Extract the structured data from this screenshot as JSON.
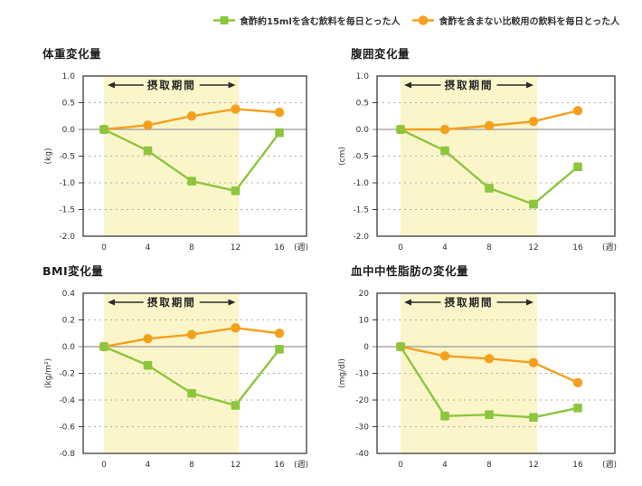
{
  "legend": {
    "items": [
      {
        "key": "vinegar",
        "label": "食酢約15mlを含む飲料を毎日とった人",
        "marker": "square",
        "color": "#8CC63E"
      },
      {
        "key": "control",
        "label": "食酢を含まない比較用の飲料を毎日とった人",
        "marker": "circle",
        "color": "#F5A01D"
      }
    ]
  },
  "intake_period_label": "摂取期間",
  "x_unit_label": "(週)",
  "colors": {
    "band": "#FBF5CA",
    "grid": "#ADADAD",
    "zero_line": "#999999",
    "frame": "#3C3C3C",
    "text": "#333333"
  },
  "chart_data": [
    {
      "type": "line",
      "title": "体重変化量",
      "ylabel": "(kg)",
      "xlabel": "(週)",
      "x": [
        0,
        4,
        8,
        12,
        16
      ],
      "ylim": [
        -2.0,
        1.0
      ],
      "ytick_labels": [
        "1.0",
        "0.5",
        "0.0",
        "-0.5",
        "-1.0",
        "-1.5",
        "-2.0"
      ],
      "grid": true,
      "intake_band_x": [
        0,
        12
      ],
      "series": [
        {
          "key": "vinegar",
          "name": "食酢約15mlを含む飲料を毎日とった人",
          "marker": "square",
          "color": "#8CC63E",
          "values": [
            0,
            -0.4,
            -0.97,
            -1.15,
            -0.06
          ]
        },
        {
          "key": "control",
          "name": "食酢を含まない比較用の飲料を毎日とった人",
          "marker": "circle",
          "color": "#F5A01D",
          "values": [
            0,
            0.08,
            0.25,
            0.38,
            0.32
          ]
        }
      ]
    },
    {
      "type": "line",
      "title": "腹囲変化量",
      "ylabel": "(cm)",
      "xlabel": "(週)",
      "x": [
        0,
        4,
        8,
        12,
        16
      ],
      "ylim": [
        -2.0,
        1.0
      ],
      "ytick_labels": [
        "1.0",
        "0.5",
        "0.0",
        "-0.5",
        "-1.0",
        "-1.5",
        "-2.0"
      ],
      "grid": true,
      "intake_band_x": [
        0,
        12
      ],
      "series": [
        {
          "key": "vinegar",
          "name": "食酢約15mlを含む飲料を毎日とった人",
          "marker": "square",
          "color": "#8CC63E",
          "values": [
            0,
            -0.4,
            -1.1,
            -1.4,
            -0.7
          ]
        },
        {
          "key": "control",
          "name": "食酢を含まない比較用の飲料を毎日とった人",
          "marker": "circle",
          "color": "#F5A01D",
          "values": [
            0,
            0.0,
            0.07,
            0.15,
            0.35
          ]
        }
      ]
    },
    {
      "type": "line",
      "title": "BMI変化量",
      "ylabel": "(kg/m²)",
      "xlabel": "(週)",
      "x": [
        0,
        4,
        8,
        12,
        16
      ],
      "ylim": [
        -0.8,
        0.4
      ],
      "ytick_labels": [
        "0.4",
        "0.2",
        "0.0",
        "-0.2",
        "-0.4",
        "-0.6",
        "-0.8"
      ],
      "grid": true,
      "intake_band_x": [
        0,
        12
      ],
      "series": [
        {
          "key": "vinegar",
          "name": "食酢約15mlを含む飲料を毎日とった人",
          "marker": "square",
          "color": "#8CC63E",
          "values": [
            0,
            -0.14,
            -0.35,
            -0.44,
            -0.02
          ]
        },
        {
          "key": "control",
          "name": "食酢を含まない比較用の飲料を毎日とった人",
          "marker": "circle",
          "color": "#F5A01D",
          "values": [
            0,
            0.06,
            0.09,
            0.14,
            0.1
          ]
        }
      ]
    },
    {
      "type": "line",
      "title": "血中中性脂肪の変化量",
      "ylabel": "(mg/dl)",
      "xlabel": "(週)",
      "x": [
        0,
        4,
        8,
        12,
        16
      ],
      "ylim": [
        -40,
        20
      ],
      "ytick_labels": [
        "20",
        "10",
        "0",
        "-10",
        "-20",
        "-30",
        "-40"
      ],
      "grid": true,
      "intake_band_x": [
        0,
        12
      ],
      "series": [
        {
          "key": "vinegar",
          "name": "食酢約15mlを含む飲料を毎日とった人",
          "marker": "square",
          "color": "#8CC63E",
          "values": [
            0,
            -26,
            -25.5,
            -26.5,
            -23
          ]
        },
        {
          "key": "control",
          "name": "食酢を含まない比較用の飲料を毎日とった人",
          "marker": "circle",
          "color": "#F5A01D",
          "values": [
            0,
            -3.5,
            -4.5,
            -6,
            -13.5
          ]
        }
      ]
    }
  ]
}
